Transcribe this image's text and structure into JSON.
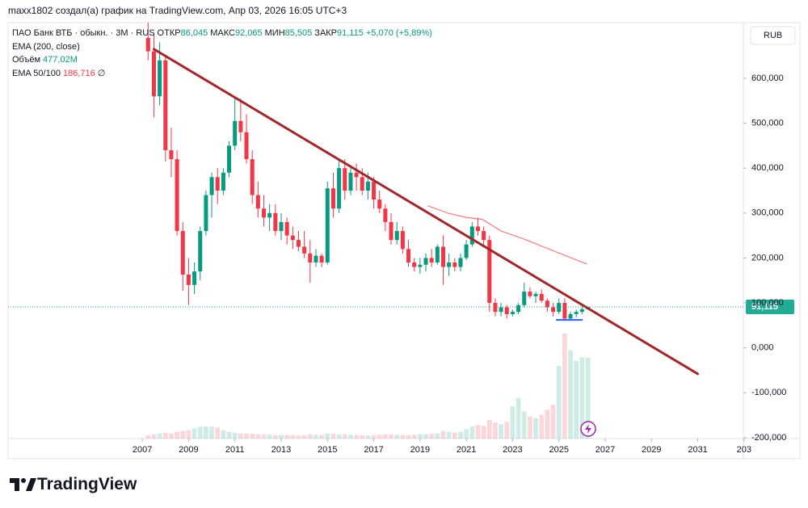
{
  "header": "maxx1802 создал(а) график на TradingView.com, Апр 03, 2026 16:05 UTC+3",
  "chart_data": {
    "type": "candlestick",
    "title": "ПАО Банк ВТБ · обыкн. · 3М · RUS",
    "ohlc_legend": [
      {
        "label": "ОТКР",
        "value": "86,045"
      },
      {
        "label": "МАКС",
        "value": "92,065"
      },
      {
        "label": "МИН",
        "value": "85,505"
      },
      {
        "label": "ЗАКР",
        "value": "91,115"
      }
    ],
    "change": "+5,070 (+5,89%)",
    "indicators": [
      {
        "name": "EMA (200, close)"
      },
      {
        "name": "Объём",
        "value": "477,02M"
      },
      {
        "name": "EMA 50/100",
        "value": "186,716",
        "extra": "∅"
      }
    ],
    "currency": "RUB",
    "up_color": "#089981",
    "down_color": "#f23645",
    "x": [
      2007.25,
      2007.5,
      2007.75,
      2008,
      2008.25,
      2008.5,
      2008.75,
      2009,
      2009.25,
      2009.5,
      2009.75,
      2010,
      2010.25,
      2010.5,
      2010.75,
      2011,
      2011.25,
      2011.5,
      2011.75,
      2012,
      2012.25,
      2012.5,
      2012.75,
      2013,
      2013.25,
      2013.5,
      2013.75,
      2014,
      2014.25,
      2014.5,
      2014.75,
      2015,
      2015.25,
      2015.5,
      2015.75,
      2016,
      2016.25,
      2016.5,
      2016.75,
      2017,
      2017.25,
      2017.5,
      2017.75,
      2018,
      2018.25,
      2018.5,
      2018.75,
      2019,
      2019.25,
      2019.5,
      2019.75,
      2020,
      2020.25,
      2020.5,
      2020.75,
      2021,
      2021.25,
      2021.5,
      2021.75,
      2022,
      2022.25,
      2022.5,
      2022.75,
      2023,
      2023.25,
      2023.5,
      2023.75,
      2024,
      2024.25,
      2024.5,
      2024.75,
      2025,
      2025.25,
      2025.5,
      2025.75,
      2026,
      2026.25
    ],
    "open": [
      690,
      660,
      560,
      640,
      440,
      420,
      260,
      163,
      140,
      170,
      260,
      340,
      380,
      350,
      390,
      450,
      505,
      480,
      420,
      340,
      310,
      290,
      300,
      260,
      280,
      250,
      240,
      225,
      210,
      190,
      205,
      190,
      355,
      310,
      400,
      350,
      390,
      380,
      350,
      370,
      330,
      310,
      280,
      240,
      260,
      220,
      190,
      180,
      185,
      200,
      190,
      225,
      180,
      190,
      180,
      200,
      230,
      270,
      260,
      240,
      100,
      80,
      90,
      75,
      80,
      95,
      125,
      115,
      120,
      105,
      90,
      80,
      100,
      65,
      75,
      80,
      86.045
    ],
    "high": [
      724,
      700,
      680,
      650,
      490,
      440,
      280,
      200,
      190,
      270,
      350,
      390,
      400,
      400,
      460,
      555,
      555,
      520,
      440,
      370,
      340,
      320,
      320,
      300,
      290,
      270,
      260,
      260,
      240,
      220,
      210,
      370,
      390,
      420,
      420,
      400,
      410,
      400,
      390,
      380,
      350,
      320,
      300,
      280,
      270,
      240,
      200,
      200,
      210,
      220,
      230,
      250,
      210,
      200,
      210,
      240,
      280,
      290,
      270,
      250,
      110,
      100,
      95,
      85,
      100,
      145,
      135,
      125,
      130,
      110,
      100,
      110,
      110,
      80,
      85,
      92,
      92.065
    ],
    "low": [
      640,
      513,
      540,
      415,
      380,
      250,
      127,
      95,
      120,
      150,
      250,
      290,
      320,
      340,
      380,
      440,
      460,
      410,
      320,
      290,
      270,
      260,
      250,
      240,
      230,
      220,
      215,
      200,
      145,
      180,
      180,
      185,
      290,
      300,
      330,
      340,
      350,
      340,
      330,
      310,
      300,
      260,
      230,
      230,
      210,
      180,
      170,
      165,
      170,
      180,
      185,
      140,
      160,
      170,
      170,
      195,
      225,
      250,
      230,
      80,
      70,
      70,
      65,
      70,
      75,
      90,
      110,
      100,
      100,
      80,
      70,
      75,
      60,
      60,
      68,
      75,
      85.505
    ],
    "close": [
      660,
      560,
      640,
      440,
      420,
      260,
      163,
      140,
      170,
      260,
      340,
      380,
      350,
      390,
      450,
      505,
      480,
      420,
      340,
      310,
      290,
      300,
      260,
      280,
      250,
      240,
      225,
      210,
      190,
      205,
      190,
      355,
      310,
      400,
      350,
      390,
      380,
      350,
      370,
      330,
      310,
      280,
      240,
      260,
      220,
      190,
      180,
      185,
      200,
      190,
      225,
      180,
      190,
      180,
      200,
      230,
      270,
      260,
      240,
      100,
      80,
      90,
      75,
      80,
      95,
      125,
      115,
      120,
      105,
      90,
      80,
      100,
      65,
      75,
      80,
      86,
      91.115
    ],
    "volume": [
      20,
      25,
      30,
      35,
      30,
      40,
      45,
      50,
      60,
      70,
      72,
      70,
      65,
      50,
      40,
      35,
      30,
      30,
      28,
      25,
      25,
      22,
      20,
      20,
      22,
      20,
      18,
      20,
      25,
      22,
      20,
      30,
      28,
      25,
      25,
      22,
      20,
      20,
      18,
      20,
      22,
      25,
      25,
      22,
      20,
      20,
      22,
      25,
      25,
      28,
      30,
      45,
      40,
      35,
      40,
      55,
      70,
      80,
      75,
      110,
      95,
      85,
      100,
      190,
      240,
      160,
      130,
      120,
      140,
      170,
      200,
      430,
      620,
      520,
      460,
      480,
      477.02
    ],
    "trendline": {
      "color": "#a0282c",
      "x": [
        2007.5,
        2031.0
      ],
      "values": [
        665,
        -58
      ]
    },
    "ema": {
      "color": "#f47c7f",
      "x": [
        2019.35,
        2020.2,
        2021.0,
        2021.7,
        2022.5,
        2023.5,
        2024.8,
        2026.2
      ],
      "values": [
        316,
        300,
        290,
        286,
        260,
        242,
        215,
        186.716
      ]
    },
    "support": {
      "color": "#2962ff",
      "x": [
        2024.9,
        2026.0
      ],
      "values": [
        62,
        62
      ]
    },
    "price_line": {
      "value": 91.115,
      "label": "91,115",
      "color": "#22ab94"
    },
    "xlim": [
      2001.2,
      2032.97
    ],
    "ylim": [
      -202,
      724
    ],
    "xticks": [
      2007,
      2009,
      2011,
      2013,
      2015,
      2017,
      2019,
      2021,
      2023,
      2025,
      2027,
      2029,
      2031,
      {
        "value": 2033,
        "label": "203"
      }
    ],
    "yticks": [
      {
        "value": 600,
        "label": "600,000"
      },
      {
        "value": 500,
        "label": "500,000"
      },
      {
        "value": 400,
        "label": "400,000"
      },
      {
        "value": 300,
        "label": "300,000"
      },
      {
        "value": 200,
        "label": "200,000"
      },
      {
        "value": 100,
        "label": "100,000"
      },
      {
        "value": 0,
        "label": "0,000"
      },
      {
        "value": -100,
        "label": "-100,000"
      },
      {
        "value": -200,
        "label": "-200,000"
      }
    ]
  },
  "footer": {
    "brand": "TradingView"
  }
}
